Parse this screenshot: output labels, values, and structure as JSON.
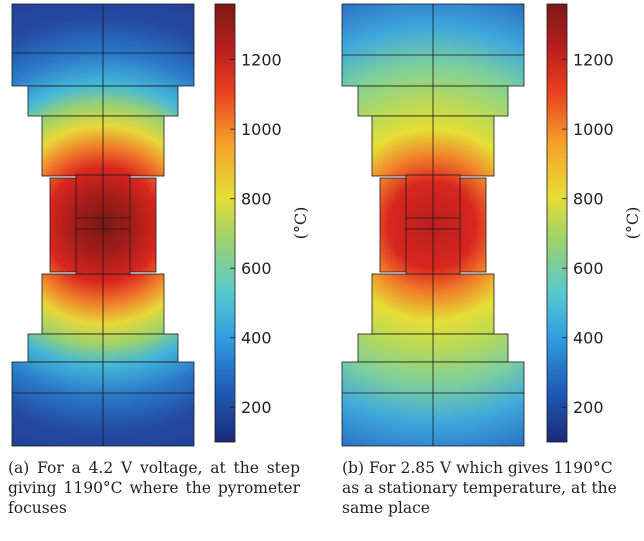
{
  "colorbar": {
    "ticks": [
      1200,
      1000,
      800,
      600,
      400,
      200
    ],
    "unit": "(°C)",
    "colors": [
      "#1c2a78",
      "#1f5db8",
      "#2f9fe0",
      "#57c9cf",
      "#9cd26e",
      "#e6de35",
      "#f5a22a",
      "#e8401f",
      "#b81f1f",
      "#7a1a15"
    ]
  },
  "panels": [
    {
      "label": "(a)",
      "caption_lines": [
        "(a) For a 4.2 V voltage, at the step giving 1190°C where the pyrometer focuses"
      ]
    },
    {
      "label": "(b)",
      "caption_lines": [
        "(b) For 2.85 V which gives 1190°C",
        "as a stationary temperature, at the",
        "same place"
      ]
    }
  ]
}
